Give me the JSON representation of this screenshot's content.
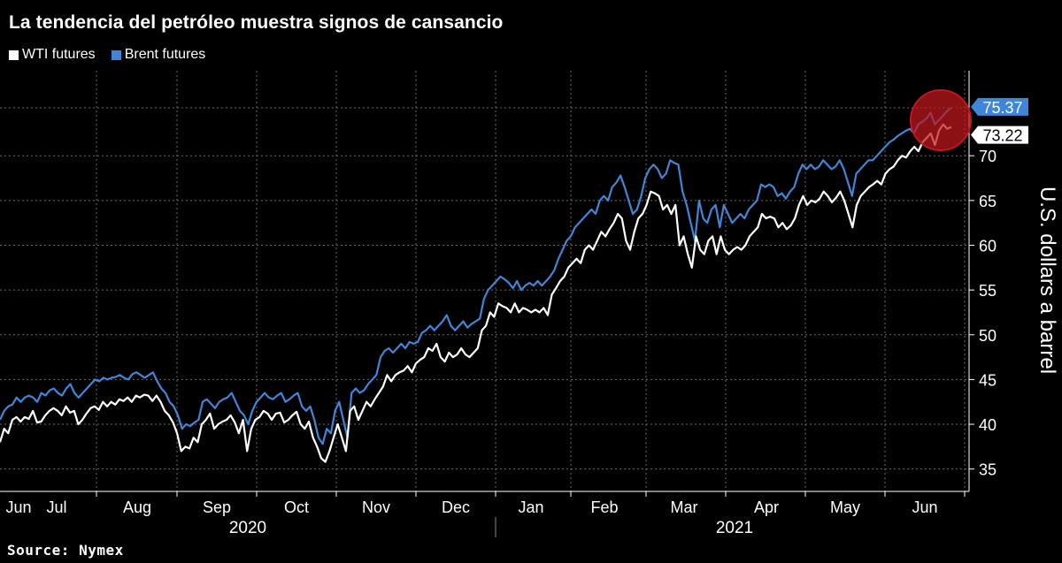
{
  "chart_data": {
    "type": "line",
    "title": "La tendencia del petróleo muestra signos de cansancio",
    "ylabel": "U.S. dollars a barrel",
    "ylim": [
      32.5,
      79.5
    ],
    "yticks": [
      35,
      40,
      45,
      50,
      55,
      60,
      65,
      70
    ],
    "grid": true,
    "legend_position": "top-left",
    "months": [
      "Jun",
      "Jul",
      "Aug",
      "Sep",
      "Oct",
      "Nov",
      "Dec",
      "Jan",
      "Feb",
      "Mar",
      "Apr",
      "May",
      "Jun"
    ],
    "years": [
      "2020",
      "2021"
    ],
    "source": "Source: Nymex",
    "x_start_date": "2020-05-25",
    "series": [
      {
        "name": "WTI futures",
        "color": "#ffffff",
        "end_label": "73.22",
        "values": [
          38.0,
          39.5,
          39.0,
          40.5,
          40.8,
          40.3,
          40.8,
          40.6,
          41.5,
          40.2,
          40.3,
          41.0,
          41.5,
          41.8,
          41.5,
          41.0,
          42.0,
          41.3,
          41.5,
          40.0,
          40.5,
          41.2,
          41.8,
          42.0,
          41.6,
          42.5,
          42.0,
          42.5,
          42.2,
          42.8,
          42.6,
          43.0,
          42.5,
          43.2,
          43.0,
          43.3,
          43.2,
          42.6,
          43.2,
          42.5,
          41.5,
          41.0,
          40.2,
          39.0,
          37.0,
          37.5,
          37.3,
          38.5,
          38.0,
          40.0,
          40.5,
          41.2,
          39.5,
          40.0,
          40.3,
          40.5,
          41.0,
          40.2,
          39.0,
          40.5,
          37.0,
          39.5,
          40.5,
          40.8,
          41.5,
          41.2,
          40.5,
          41.2,
          41.3,
          40.2,
          40.5,
          41.0,
          41.4,
          40.0,
          39.5,
          40.3,
          38.5,
          37.5,
          36.2,
          35.8,
          37.0,
          38.5,
          40.0,
          38.5,
          37.0,
          41.5,
          42.0,
          40.5,
          41.5,
          42.5,
          42.0,
          42.8,
          43.5,
          44.2,
          45.5,
          44.8,
          45.5,
          45.8,
          46.0,
          46.5,
          45.8,
          46.8,
          47.2,
          47.5,
          48.5,
          48.2,
          49.0,
          47.5,
          47.0,
          48.0,
          47.5,
          47.8,
          48.5,
          47.8,
          47.5,
          48.0,
          48.5,
          50.5,
          51.0,
          52.5,
          52.0,
          53.5,
          53.2,
          53.0,
          52.5,
          53.5,
          52.5,
          53.0,
          52.8,
          52.5,
          52.8,
          52.5,
          53.0,
          52.2,
          54.5,
          55.2,
          56.0,
          56.5,
          57.5,
          58.0,
          58.5,
          58.0,
          59.5,
          60.0,
          59.5,
          60.5,
          61.5,
          61.0,
          61.8,
          62.5,
          63.5,
          63.0,
          60.5,
          59.5,
          61.5,
          63.0,
          63.5,
          64.5,
          66.0,
          65.8,
          65.5,
          64.0,
          64.5,
          63.5,
          64.5,
          60.0,
          61.0,
          59.0,
          57.5,
          61.0,
          59.5,
          59.0,
          60.5,
          61.0,
          59.0,
          61.0,
          59.5,
          59.0,
          59.5,
          59.8,
          59.5,
          60.0,
          61.0,
          61.5,
          62.0,
          63.5,
          63.0,
          63.2,
          63.0,
          62.0,
          62.5,
          61.8,
          62.2,
          63.0,
          64.5,
          65.5,
          64.5,
          65.0,
          64.8,
          65.2,
          66.0,
          65.5,
          64.8,
          65.3,
          66.0,
          65.0,
          63.5,
          62.0,
          64.5,
          65.5,
          66.0,
          66.5,
          66.8,
          67.2,
          66.8,
          68.0,
          68.5,
          68.8,
          69.5,
          70.0,
          69.8,
          70.5,
          71.0,
          70.5,
          71.5,
          72.0,
          72.5,
          71.2,
          72.8,
          73.5,
          73.0,
          73.22
        ]
      },
      {
        "name": "Brent futures",
        "color": "#3f86d8",
        "end_label": "75.37",
        "values": [
          40.5,
          41.5,
          42.0,
          42.2,
          43.0,
          42.5,
          43.0,
          43.2,
          43.0,
          42.5,
          43.5,
          43.2,
          43.8,
          44.0,
          43.5,
          43.2,
          44.0,
          44.5,
          43.5,
          43.0,
          43.5,
          44.0,
          44.5,
          45.0,
          44.8,
          45.2,
          45.0,
          45.2,
          45.3,
          45.5,
          45.2,
          45.0,
          45.6,
          45.8,
          45.5,
          45.2,
          45.5,
          45.8,
          44.8,
          44.0,
          43.5,
          42.5,
          42.0,
          41.0,
          39.5,
          40.0,
          39.8,
          40.2,
          40.5,
          42.5,
          42.8,
          42.3,
          41.8,
          42.5,
          42.8,
          43.0,
          43.5,
          42.5,
          41.5,
          41.0,
          40.0,
          41.5,
          42.5,
          43.0,
          43.5,
          43.0,
          42.8,
          43.2,
          43.5,
          42.5,
          42.8,
          43.2,
          43.5,
          42.0,
          41.5,
          42.0,
          40.5,
          38.5,
          37.8,
          39.5,
          39.0,
          41.5,
          42.5,
          40.5,
          38.5,
          43.5,
          44.0,
          43.5,
          43.8,
          44.5,
          45.0,
          45.5,
          47.5,
          48.2,
          48.5,
          48.0,
          48.5,
          49.0,
          48.5,
          49.2,
          49.0,
          49.2,
          50.2,
          50.5,
          51.0,
          50.5,
          51.0,
          51.5,
          52.2,
          51.0,
          50.5,
          51.0,
          51.5,
          50.8,
          51.2,
          51.5,
          51.8,
          54.0,
          55.0,
          55.5,
          56.0,
          56.5,
          56.2,
          55.8,
          55.2,
          56.0,
          55.0,
          55.5,
          55.8,
          55.5,
          56.0,
          55.5,
          56.0,
          56.5,
          57.2,
          58.5,
          59.5,
          60.5,
          61.0,
          62.0,
          62.5,
          63.0,
          63.5,
          64.0,
          63.5,
          65.0,
          65.5,
          65.0,
          66.5,
          67.0,
          67.8,
          66.5,
          65.0,
          63.5,
          64.0,
          65.5,
          67.5,
          68.5,
          69.0,
          68.5,
          67.5,
          68.0,
          69.5,
          69.2,
          69.0,
          66.0,
          64.5,
          62.5,
          60.5,
          65.0,
          63.0,
          62.5,
          64.0,
          64.5,
          62.0,
          64.5,
          63.5,
          62.5,
          63.0,
          63.5,
          63.0,
          64.0,
          64.5,
          65.0,
          66.8,
          66.5,
          66.8,
          66.5,
          65.5,
          65.8,
          65.2,
          66.0,
          66.5,
          68.0,
          69.0,
          68.5,
          69.0,
          68.5,
          68.8,
          69.5,
          69.0,
          68.5,
          68.8,
          69.5,
          68.5,
          67.0,
          65.5,
          68.0,
          68.5,
          69.0,
          69.5,
          69.5,
          70.0,
          70.5,
          71.0,
          71.5,
          71.8,
          72.2,
          72.5,
          72.8,
          73.0,
          72.5,
          73.5,
          73.8,
          74.2,
          74.8,
          73.5,
          74.0,
          74.5,
          75.0,
          75.37
        ]
      }
    ]
  },
  "legend": {
    "wti_label": "WTI futures",
    "brent_label": "Brent futures",
    "wti_color": "#ffffff",
    "brent_color": "#3f86d8"
  },
  "highlight": {
    "color": "#c0181c"
  }
}
